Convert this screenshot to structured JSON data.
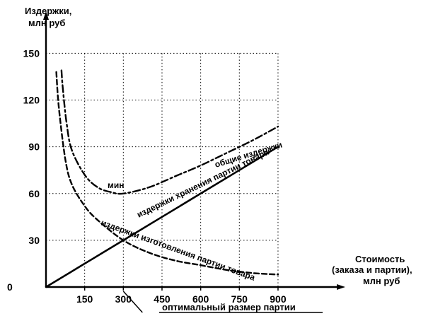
{
  "chart_data": {
    "type": "line",
    "ylabel": [
      "Издержки,",
      "млн  руб"
    ],
    "xlabel": [
      "Стоимость",
      "(заказа и партии),",
      "млн  руб"
    ],
    "origin_label": "0",
    "x_ticks": [
      150,
      300,
      450,
      600,
      750,
      900
    ],
    "y_ticks": [
      30,
      60,
      90,
      120,
      150
    ],
    "xlim": [
      0,
      900
    ],
    "ylim": [
      0,
      150
    ],
    "grid": true,
    "min_label": "мин",
    "optimum_label": "оптимальный размер партии",
    "optimum_x": 300,
    "series": [
      {
        "name": "издержки хранения партии товара",
        "style": "solid",
        "x": [
          0,
          150,
          300,
          450,
          600,
          750,
          900
        ],
        "y": [
          0,
          15,
          30,
          45,
          60,
          75,
          90
        ]
      },
      {
        "name": "издержки изготовления партии товара",
        "style": "dashed",
        "x": [
          40,
          50,
          75,
          100,
          150,
          200,
          300,
          400,
          500,
          600,
          700,
          800,
          900
        ],
        "y": [
          138,
          115,
          82,
          66,
          52,
          43,
          30,
          22,
          17,
          14,
          11,
          9,
          8
        ]
      },
      {
        "name": "общие издержки",
        "style": "dashdot",
        "x": [
          60,
          65,
          80,
          100,
          150,
          200,
          250,
          300,
          400,
          500,
          600,
          700,
          800,
          900
        ],
        "y": [
          139,
          128,
          105,
          88,
          72,
          64,
          61,
          60,
          64,
          71,
          78,
          86,
          94,
          103
        ]
      }
    ]
  }
}
